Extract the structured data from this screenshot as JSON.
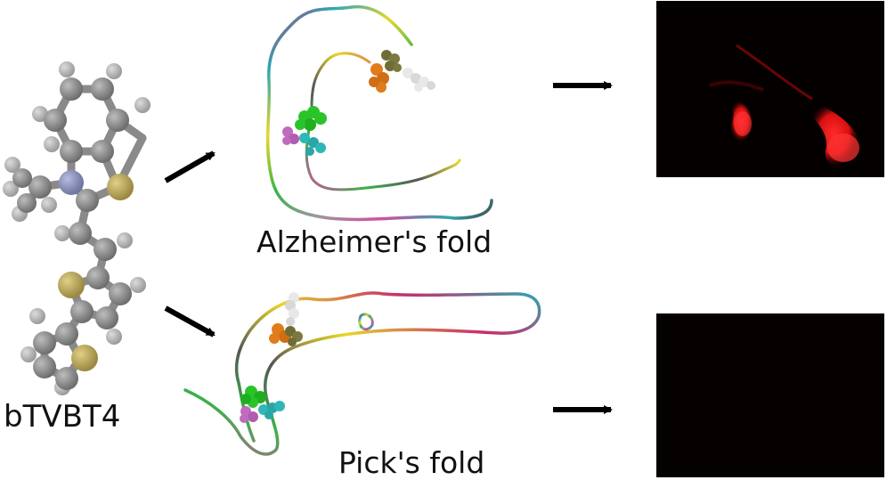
{
  "molecule": {
    "name": "bTVBT4",
    "atom_colors": {
      "carbon": "#8c8c8c",
      "hydrogen": "#b4b4b4",
      "nitrogen": "#8a8fb8",
      "sulfur": "#b8a55e"
    }
  },
  "folds": {
    "alzheimer": {
      "label": "Alzheimer's fold"
    },
    "pick": {
      "label": "Pick's fold"
    }
  },
  "binding_site_colors": [
    "#25d125",
    "#c06ac0",
    "#2fb7b7",
    "#e07c1c",
    "#6f6d35",
    "#e8e8e8"
  ],
  "results": {
    "alzheimer_panel": {
      "signal": "bright red fluorescence",
      "color": "#e81212"
    },
    "pick_panel": {
      "signal": "no fluorescence",
      "color": "#060101"
    }
  },
  "arrows": [
    "to-alzheimer-fold",
    "to-pick-fold",
    "to-alzheimer-image",
    "to-pick-image"
  ]
}
